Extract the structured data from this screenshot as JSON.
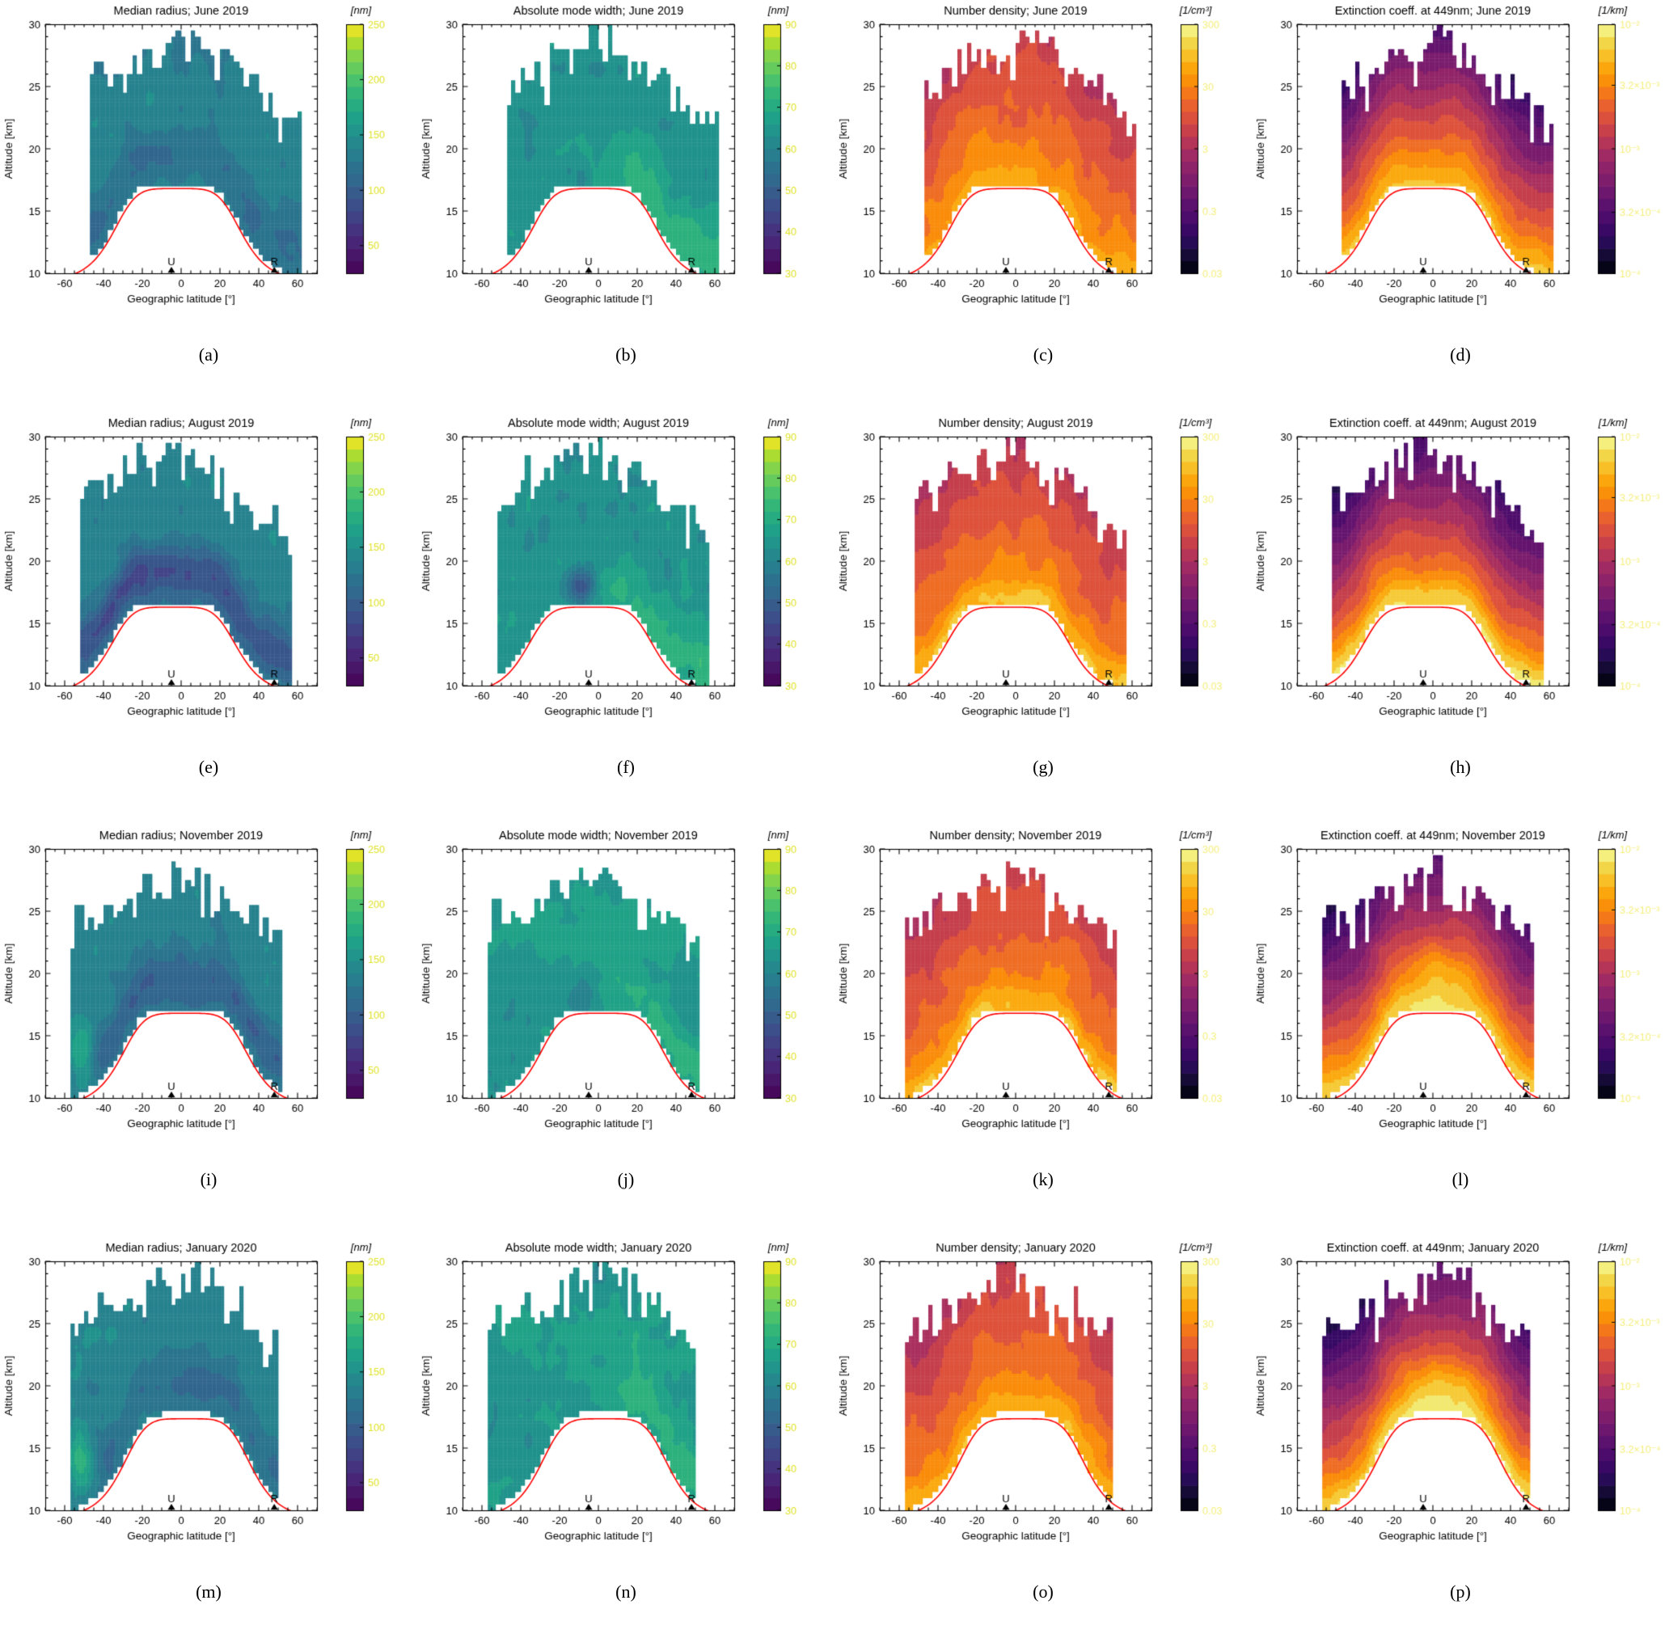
{
  "figure": {
    "xlabel": "Geographic latitude [°]",
    "ylabel": "Altitude [km]",
    "xlim": [
      -70,
      70
    ],
    "ylim": [
      10,
      30
    ],
    "xticks": [
      -60,
      -40,
      -20,
      0,
      20,
      40,
      60
    ],
    "yticks": [
      10,
      15,
      20,
      25,
      30
    ],
    "markers": [
      {
        "label": "U",
        "lat": -5
      },
      {
        "label": "R",
        "lat": 48
      }
    ],
    "tropopause_line_color": "#ff0000",
    "rows": [
      "June 2019",
      "August 2019",
      "November 2019",
      "January 2020"
    ],
    "cols": [
      "Median radius",
      "Absolute mode width",
      "Number density",
      "Extinction coeff. at 449nm"
    ],
    "colorbars": {
      "radius": {
        "units": "[nm]",
        "scale": "linear",
        "colormap": "viridis",
        "labels": [
          "250",
          "200",
          "150",
          "100",
          "50"
        ],
        "fracs": [
          1.0,
          0.7778,
          0.5556,
          0.3333,
          0.1111
        ]
      },
      "width": {
        "units": "[nm]",
        "scale": "linear",
        "colormap": "viridis",
        "labels": [
          "90",
          "80",
          "70",
          "60",
          "50",
          "40",
          "30"
        ],
        "fracs": [
          1,
          0.8333,
          0.6667,
          0.5,
          0.3333,
          0.1667,
          0
        ]
      },
      "density": {
        "units": "[1/cm³]",
        "scale": "log",
        "colormap": "inferno",
        "labels": [
          "300",
          "30",
          "3",
          "0.3",
          "0.03"
        ],
        "fracs": [
          1,
          0.75,
          0.5,
          0.25,
          0
        ]
      },
      "extinction": {
        "units": "[1/km]",
        "scale": "log",
        "colormap": "inferno",
        "labels": [
          "10⁻²",
          "3.2×10⁻³",
          "10⁻³",
          "3.2×10⁻⁴",
          "10⁻⁴"
        ],
        "fracs": [
          1,
          0.755,
          0.5,
          0.245,
          0
        ]
      }
    },
    "panels": [
      {
        "letter": "(a)",
        "title": "Median radius; June 2019",
        "role": "radius",
        "row": 0,
        "col": 0
      },
      {
        "letter": "(b)",
        "title": "Absolute mode width; June 2019",
        "role": "width",
        "row": 0,
        "col": 1
      },
      {
        "letter": "(c)",
        "title": "Number density; June 2019",
        "role": "density",
        "row": 0,
        "col": 2
      },
      {
        "letter": "(d)",
        "title": "Extinction coeff. at 449nm; June 2019",
        "role": "extinction",
        "row": 0,
        "col": 3
      },
      {
        "letter": "(e)",
        "title": "Median radius; August 2019",
        "role": "radius",
        "row": 1,
        "col": 0
      },
      {
        "letter": "(f)",
        "title": "Absolute mode width; August 2019",
        "role": "width",
        "row": 1,
        "col": 1
      },
      {
        "letter": "(g)",
        "title": "Number density; August 2019",
        "role": "density",
        "row": 1,
        "col": 2
      },
      {
        "letter": "(h)",
        "title": "Extinction coeff. at 449nm; August 2019",
        "role": "extinction",
        "row": 1,
        "col": 3
      },
      {
        "letter": "(i)",
        "title": "Median radius; November 2019",
        "role": "radius",
        "row": 2,
        "col": 0
      },
      {
        "letter": "(j)",
        "title": "Absolute mode width; November 2019",
        "role": "width",
        "row": 2,
        "col": 1
      },
      {
        "letter": "(k)",
        "title": "Number density; November 2019",
        "role": "density",
        "row": 2,
        "col": 2
      },
      {
        "letter": "(l)",
        "title": "Extinction coeff. at 449nm; November 2019",
        "role": "extinction",
        "row": 2,
        "col": 3
      },
      {
        "letter": "(m)",
        "title": "Median radius; January 2020",
        "role": "radius",
        "row": 3,
        "col": 0
      },
      {
        "letter": "(n)",
        "title": "Absolute mode width; January 2020",
        "role": "width",
        "row": 3,
        "col": 1
      },
      {
        "letter": "(o)",
        "title": "Number density; January 2020",
        "role": "density",
        "row": 3,
        "col": 2
      },
      {
        "letter": "(p)",
        "title": "Extinction coeff. at 449nm; January 2020",
        "role": "extinction",
        "row": 3,
        "col": 3
      }
    ]
  },
  "chart_data": {
    "type": "heatmap",
    "layout": "4x4 grid of filled-contour latitude-altitude cross sections",
    "common": {
      "xlabel": "Geographic latitude [°]",
      "ylabel": "Altitude [km]",
      "xlim": [
        -70,
        70
      ],
      "ylim": [
        10,
        30
      ],
      "xticks": [
        -60,
        -40,
        -20,
        0,
        20,
        40,
        60
      ],
      "yticks": [
        10,
        15,
        20,
        25,
        30
      ],
      "overlays": [
        "red tropopause altitude line, ~17 km in the tropics, descending to ~10 km poleward of ±45° latitude",
        "black triangle marker 'U' at about -5° latitude on the bottom axis",
        "black triangle marker 'R' at about 48° latitude on the bottom axis"
      ],
      "colorbar_scales": {
        "radius": {
          "units": "nm",
          "scale": "linear",
          "ticks": [
            50,
            100,
            150,
            200,
            250
          ],
          "colormap": "viridis"
        },
        "width": {
          "units": "nm",
          "scale": "linear",
          "ticks": [
            30,
            40,
            50,
            60,
            70,
            80,
            90
          ],
          "colormap": "viridis"
        },
        "density": {
          "units": "1/cm³",
          "scale": "log",
          "ticks": [
            0.03,
            0.3,
            3,
            30,
            300
          ],
          "colormap": "inferno"
        },
        "extinction": {
          "units": "1/km",
          "scale": "log",
          "ticks": [
            0.0001,
            0.00032,
            0.001,
            0.0032,
            0.01
          ],
          "colormap": "inferno"
        }
      }
    },
    "panels": [
      {
        "panel": "(a)",
        "quantity": "Median radius",
        "month": "June 2019",
        "units": "nm",
        "summary": "Mostly 100–150 nm (teal); slightly smaller 75–100 nm pockets between 18 and 23 km; cloud spans about -45° to 62° latitude from just above the tropopause to ~29 km."
      },
      {
        "panel": "(b)",
        "quantity": "Absolute mode width",
        "month": "June 2019",
        "units": "nm",
        "summary": "Fairly uniform 45–60 nm with weak maxima near the cloud bottom."
      },
      {
        "panel": "(c)",
        "quantity": "Number density",
        "month": "June 2019",
        "units": "1/cm³",
        "summary": "About 1–10 cm⁻³ aloft, increasing to 10–30 cm⁻³ just above the tropopause, mainly on the poleward flanks."
      },
      {
        "panel": "(d)",
        "quantity": "Extinction coeff. at 449nm",
        "month": "June 2019",
        "units": "1/km",
        "summary": "Falls from ~10⁻³ km⁻¹ near the tropopause to below 10⁻⁴ km⁻¹ (dark purple) above ~27 km."
      },
      {
        "panel": "(e)",
        "quantity": "Median radius",
        "month": "August 2019",
        "units": "nm",
        "summary": "Distinct low-radius band (~50–100 nm, dark) at 17–20 km across -40° to 20°; 100–150 nm elsewhere."
      },
      {
        "panel": "(f)",
        "quantity": "Absolute mode width",
        "month": "August 2019",
        "units": "nm",
        "summary": "Minimum (~30–40 nm) near -10°, 18 km; enhanced widths 60–75 nm at 20–23 km and toward the lower right."
      },
      {
        "panel": "(g)",
        "quantity": "Number density",
        "month": "August 2019",
        "units": "1/cm³",
        "summary": "Highest densities (~30–100 cm⁻³, pale yellow) right above the tropopause between -20° and 20°; 3–30 cm⁻³ elsewhere."
      },
      {
        "panel": "(h)",
        "quantity": "Extinction coeff. at 449nm",
        "month": "August 2019",
        "units": "1/km",
        "summary": "Strong vertical gradient: ≥3.2×10⁻³ km⁻¹ (bright orange) just above the tropopause, ~10⁻⁴ km⁻¹ near 28 km."
      },
      {
        "panel": "(i)",
        "quantity": "Median radius",
        "month": "November 2019",
        "units": "nm",
        "summary": "100–150 nm overall; darker 75–100 nm layer at 16–19 km; a few greener ~175 nm patches at 24–27 km."
      },
      {
        "panel": "(j)",
        "quantity": "Absolute mode width",
        "month": "November 2019",
        "units": "nm",
        "summary": "50–65 nm, slightly larger (green, 65–75 nm) in the upper middle and at the right edge."
      },
      {
        "panel": "(k)",
        "quantity": "Number density",
        "month": "November 2019",
        "units": "1/cm³",
        "summary": "3–30 cm⁻³ over most of the cloud; ~30–100 cm⁻³ (pale) near the lower boundary."
      },
      {
        "panel": "(l)",
        "quantity": "Extinction coeff. at 449nm",
        "month": "November 2019",
        "units": "1/km",
        "summary": "Orange maximum (~1–3×10⁻³ km⁻¹) around 0°–10°, 19–21 km; below 3.2×10⁻⁴ km⁻¹ (purple) above ~25 km."
      },
      {
        "panel": "(m)",
        "quantity": "Median radius",
        "month": "January 2020",
        "units": "nm",
        "summary": "100–150 nm; enhanced values (~200 nm, yellow-green) at the lower-left edge near -55°, 13–15 km."
      },
      {
        "panel": "(n)",
        "quantity": "Absolute mode width",
        "month": "January 2020",
        "units": "nm",
        "summary": "55–70 nm with greener (larger) values through the lower half of the cloud."
      },
      {
        "panel": "(o)",
        "quantity": "Number density",
        "month": "January 2020",
        "units": "1/cm³",
        "summary": "Mostly 3–30 cm⁻³, brightening toward the tropopause; magenta ~1 cm⁻³ patches near the cloud top."
      },
      {
        "panel": "(p)",
        "quantity": "Extinction coeff. at 449nm",
        "month": "January 2020",
        "units": "1/km",
        "summary": "Bright orange/cream maximum (~3×10⁻³ km⁻¹) near 0°–10° at 20–21 km and near the lower-left boundary; ≤3.2×10⁻⁴ km⁻¹ (dark purple) at the top."
      }
    ]
  }
}
